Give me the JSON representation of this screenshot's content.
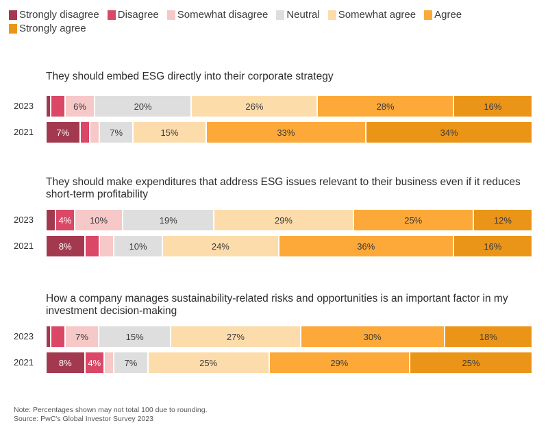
{
  "chart_data": {
    "type": "bar",
    "orientation": "horizontal-stacked-100",
    "legend_position": "top-left",
    "categories": [
      "Strongly disagree",
      "Disagree",
      "Somewhat disagree",
      "Neutral",
      "Somewhat agree",
      "Agree",
      "Strongly agree"
    ],
    "colors": [
      "#a2394f",
      "#db4766",
      "#f6c8c7",
      "#dedede",
      "#fddcac",
      "#fca93a",
      "#eb9518"
    ],
    "legend": [
      "Strongly disagree",
      "Disagree",
      "Somewhat disagree",
      "Neutral",
      "Somewhat agree",
      "Agree",
      "Strongly agree"
    ],
    "groups": [
      {
        "title": "They should embed ESG directly into their corporate strategy",
        "rows": [
          {
            "year": "2023",
            "values": [
              1,
              3,
              6,
              20,
              26,
              28,
              16
            ],
            "labels": [
              "",
              "",
              "6%",
              "20%",
              "26%",
              "28%",
              "16%"
            ]
          },
          {
            "year": "2021",
            "values": [
              7,
              2,
              2,
              7,
              15,
              33,
              34
            ],
            "labels": [
              "7%",
              "",
              "",
              "7%",
              "15%",
              "33%",
              "34%"
            ]
          }
        ]
      },
      {
        "title": "They should make expenditures that address ESG issues relevant to their business even if it reduces short-term profitability",
        "rows": [
          {
            "year": "2023",
            "values": [
              2,
              4,
              10,
              19,
              29,
              25,
              12
            ],
            "labels": [
              "",
              "4%",
              "10%",
              "19%",
              "29%",
              "25%",
              "12%"
            ]
          },
          {
            "year": "2021",
            "values": [
              8,
              3,
              3,
              10,
              24,
              36,
              16
            ],
            "labels": [
              "8%",
              "",
              "",
              "10%",
              "24%",
              "36%",
              "16%"
            ]
          }
        ]
      },
      {
        "title": "How a company manages sustainability-related risks and opportunities is an important factor in my investment decision-making",
        "rows": [
          {
            "year": "2023",
            "values": [
              1,
              3,
              7,
              15,
              27,
              30,
              18
            ],
            "labels": [
              "",
              "",
              "7%",
              "15%",
              "27%",
              "30%",
              "18%"
            ]
          },
          {
            "year": "2021",
            "values": [
              8,
              4,
              2,
              7,
              25,
              29,
              25
            ],
            "labels": [
              "8%",
              "4%",
              "",
              "7%",
              "25%",
              "29%",
              "25%"
            ]
          }
        ]
      }
    ],
    "note": "Note: Percentages shown may not total 100 due to rounding.",
    "source": "Source: PwC's Global Investor Survey 2023"
  }
}
